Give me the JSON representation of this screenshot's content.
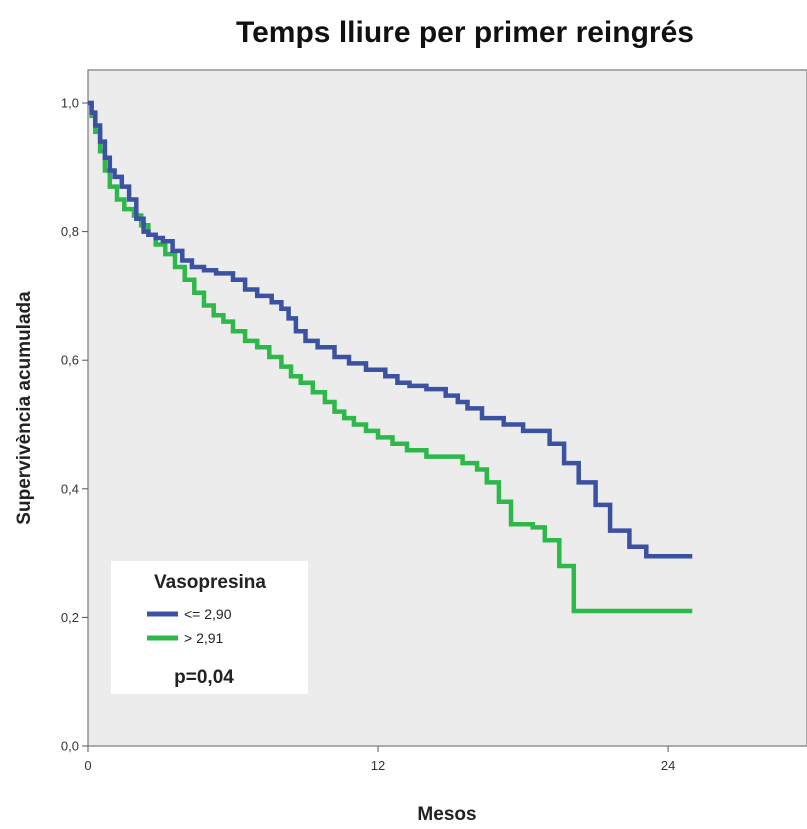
{
  "chart_data": {
    "type": "line",
    "step": true,
    "title": "Temps lliure per primer reingrés",
    "xlabel": "Mesos",
    "ylabel": "Supervivència acumulada",
    "xlim": [
      0,
      29
    ],
    "ylim": [
      0,
      1
    ],
    "x_ticks": [
      0,
      12,
      24
    ],
    "x_tick_labels": [
      "0",
      "12",
      "24"
    ],
    "y_ticks": [
      0,
      0.2,
      0.4,
      0.6,
      0.8,
      1.0
    ],
    "y_tick_labels": [
      "0,0",
      "0,2",
      "0,4",
      "0,6",
      "0,8",
      "1,0"
    ],
    "grid": false,
    "legend": {
      "title": "Vasopresina",
      "placement": "bottom-left",
      "entries": [
        "<= 2,90",
        "> 2,91"
      ]
    },
    "annotation": "p=0,04",
    "series": [
      {
        "name": "<= 2,90",
        "color": "#3b52a3",
        "x": [
          0,
          0.15,
          0.3,
          0.5,
          0.7,
          0.9,
          1.1,
          1.4,
          1.7,
          2.0,
          2.3,
          2.5,
          2.8,
          3.1,
          3.5,
          3.9,
          4.3,
          4.8,
          5.3,
          6.0,
          6.5,
          7.0,
          7.6,
          8.0,
          8.3,
          8.6,
          9.0,
          9.5,
          10.2,
          10.8,
          11.5,
          12.3,
          12.8,
          13.3,
          14.0,
          14.8,
          15.3,
          15.7,
          16.3,
          17.2,
          18.0,
          19.1,
          19.7,
          20.3,
          21.0,
          21.6,
          22.4,
          23.1,
          25.0
        ],
        "values": [
          1.0,
          0.985,
          0.965,
          0.94,
          0.915,
          0.895,
          0.885,
          0.87,
          0.85,
          0.82,
          0.8,
          0.795,
          0.79,
          0.785,
          0.77,
          0.755,
          0.745,
          0.74,
          0.735,
          0.725,
          0.71,
          0.7,
          0.69,
          0.68,
          0.665,
          0.645,
          0.63,
          0.62,
          0.605,
          0.595,
          0.585,
          0.575,
          0.565,
          0.56,
          0.555,
          0.545,
          0.535,
          0.525,
          0.51,
          0.5,
          0.49,
          0.47,
          0.44,
          0.41,
          0.375,
          0.335,
          0.31,
          0.295,
          0.295
        ]
      },
      {
        "name": "> 2,91",
        "color": "#2fb84a",
        "x": [
          0,
          0.15,
          0.3,
          0.5,
          0.7,
          0.9,
          1.2,
          1.5,
          1.9,
          2.2,
          2.5,
          2.8,
          3.2,
          3.6,
          4.0,
          4.4,
          4.8,
          5.2,
          5.6,
          6.0,
          6.5,
          7.0,
          7.5,
          8.0,
          8.4,
          8.8,
          9.3,
          9.8,
          10.2,
          10.6,
          11.0,
          11.5,
          12.0,
          12.6,
          13.2,
          14.0,
          14.8,
          15.5,
          16.1,
          16.5,
          17.0,
          17.5,
          18.4,
          18.9,
          19.5,
          20.1,
          25.0
        ],
        "values": [
          1.0,
          0.98,
          0.955,
          0.925,
          0.895,
          0.87,
          0.85,
          0.835,
          0.825,
          0.81,
          0.795,
          0.78,
          0.765,
          0.745,
          0.725,
          0.705,
          0.685,
          0.67,
          0.66,
          0.645,
          0.63,
          0.62,
          0.605,
          0.59,
          0.575,
          0.565,
          0.55,
          0.535,
          0.52,
          0.51,
          0.5,
          0.49,
          0.48,
          0.47,
          0.46,
          0.45,
          0.45,
          0.44,
          0.43,
          0.41,
          0.38,
          0.345,
          0.34,
          0.32,
          0.28,
          0.21,
          0.21
        ]
      }
    ]
  }
}
